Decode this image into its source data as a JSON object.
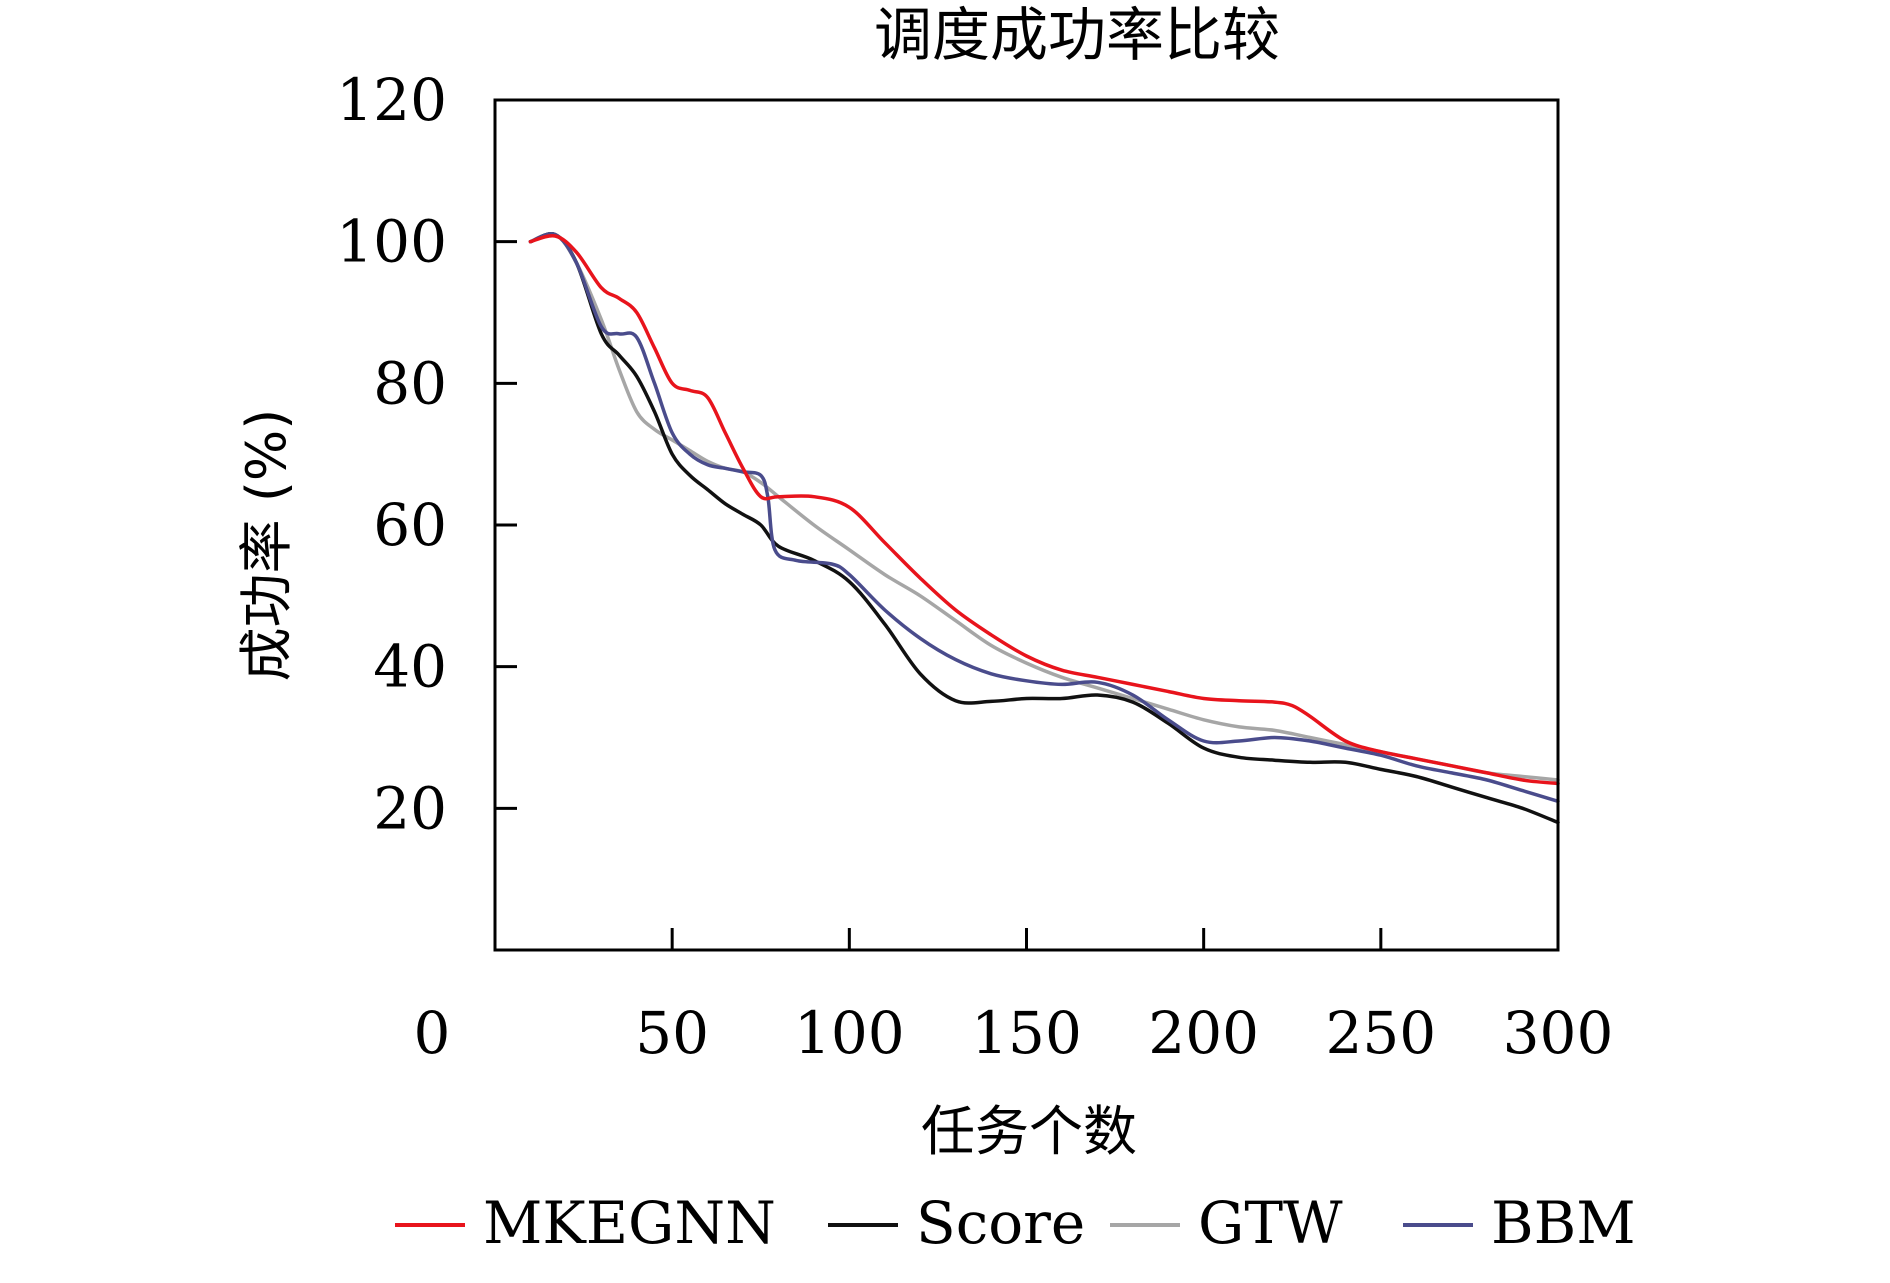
{
  "chart_data": {
    "type": "line",
    "title": "调度成功率比较",
    "xlabel": "任务个数",
    "ylabel": "成功率 (%)",
    "xlim": [
      0,
      300
    ],
    "ylim": [
      0,
      120
    ],
    "x_ticks": [
      "0",
      "50",
      "100",
      "150",
      "200",
      "250",
      "300"
    ],
    "y_ticks": [
      "20",
      "40",
      "60",
      "80",
      "100",
      "120"
    ],
    "grid": false,
    "legend_position": "bottom",
    "series": [
      {
        "name": "MKEGNN",
        "color": "#e8141c",
        "x": [
          10,
          17,
          23,
          30,
          35,
          40,
          45,
          50,
          55,
          60,
          65,
          70,
          75,
          80,
          90,
          100,
          110,
          120,
          130,
          140,
          150,
          160,
          170,
          180,
          190,
          200,
          210,
          220,
          225,
          230,
          240,
          250,
          260,
          270,
          280,
          290,
          300
        ],
        "values": [
          100,
          100.8,
          98.5,
          93.5,
          92,
          90,
          85,
          80,
          79,
          78,
          73,
          68,
          64,
          64,
          64,
          62.5,
          57.5,
          52.5,
          48,
          44.5,
          41.5,
          39.5,
          38.5,
          37.5,
          36.5,
          35.5,
          35.2,
          35,
          34.5,
          33,
          29.5,
          28,
          27,
          26,
          25,
          24,
          23.5
        ]
      },
      {
        "name": "Score",
        "color": "#111111",
        "x": [
          10,
          17,
          23,
          30,
          35,
          40,
          45,
          50,
          55,
          60,
          65,
          70,
          75,
          80,
          90,
          100,
          110,
          120,
          130,
          140,
          150,
          160,
          170,
          180,
          190,
          200,
          210,
          220,
          230,
          240,
          250,
          260,
          270,
          280,
          290,
          300
        ],
        "values": [
          100,
          101,
          97,
          87,
          84,
          81,
          76,
          70,
          67,
          65,
          63,
          61.5,
          60,
          57,
          55,
          52,
          46,
          39,
          35.2,
          35.1,
          35.5,
          35.5,
          36,
          35,
          32,
          28.5,
          27.2,
          26.8,
          26.5,
          26.5,
          25.5,
          24.5,
          23,
          21.5,
          20,
          18
        ]
      },
      {
        "name": "GTW",
        "color": "#a6a6a6",
        "x": [
          10,
          17,
          23,
          30,
          35,
          40,
          45,
          50,
          55,
          60,
          65,
          70,
          75,
          80,
          90,
          100,
          110,
          120,
          130,
          140,
          150,
          160,
          170,
          180,
          190,
          200,
          210,
          220,
          230,
          240,
          250,
          260,
          270,
          280,
          290,
          300
        ],
        "values": [
          100,
          101,
          97,
          89,
          82,
          76,
          73.5,
          72,
          70.5,
          69,
          68,
          67.5,
          66,
          64,
          60,
          56.5,
          53,
          50,
          46.5,
          43,
          40.5,
          38.5,
          37,
          35.5,
          34,
          32.5,
          31.5,
          31,
          30,
          29,
          28,
          27,
          26,
          25,
          24.5,
          24
        ]
      },
      {
        "name": "BBM",
        "color": "#4a4c8c",
        "x": [
          10,
          17,
          23,
          30,
          35,
          40,
          45,
          50,
          55,
          60,
          65,
          70,
          75,
          77,
          79,
          85,
          95,
          100,
          110,
          120,
          130,
          140,
          150,
          160,
          170,
          180,
          190,
          200,
          210,
          220,
          230,
          240,
          250,
          260,
          270,
          280,
          290,
          300
        ],
        "values": [
          100,
          101,
          97,
          88,
          87,
          86.5,
          80,
          73,
          70,
          68.5,
          68,
          67.5,
          67,
          64,
          56.5,
          55,
          54.5,
          53,
          48,
          44,
          41,
          39,
          38,
          37.5,
          37.8,
          36,
          32.5,
          29.5,
          29.5,
          30,
          29.5,
          28.5,
          27.5,
          26,
          25,
          24,
          22.5,
          21
        ]
      }
    ]
  }
}
